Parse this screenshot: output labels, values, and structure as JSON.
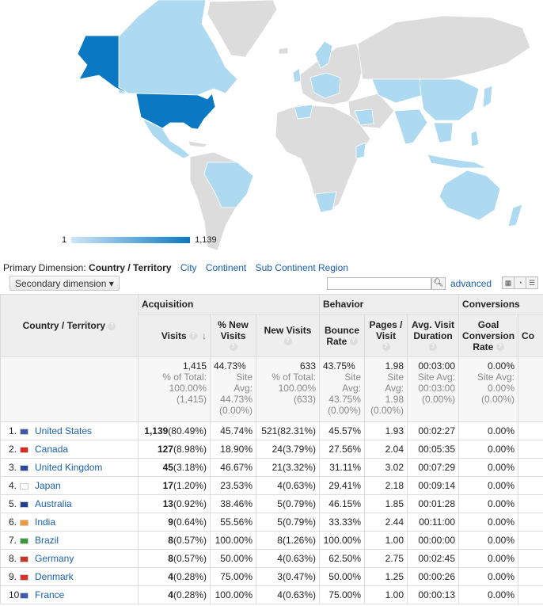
{
  "map": {
    "legend_min": "1",
    "legend_max": "1,139",
    "color_high": "#0a78c2",
    "color_low": "#cfe6f6"
  },
  "dimensions": {
    "label": "Primary Dimension:",
    "current": "Country / Territory",
    "links": [
      "City",
      "Continent",
      "Sub Continent Region"
    ]
  },
  "toolbar": {
    "secondary": "Secondary dimension",
    "search_value": "",
    "advanced": "advanced"
  },
  "groups": {
    "acquisition": "Acquisition",
    "behavior": "Behavior",
    "conversions": "Conversions"
  },
  "columns": {
    "country": "Country / Territory",
    "visits": "Visits",
    "pct_new": "% New Visits",
    "new_visits": "New Visits",
    "bounce": "Bounce Rate",
    "pages": "Pages / Visit",
    "duration": "Avg. Visit Duration",
    "goal": "Goal Conversion Rate",
    "extra": "Co"
  },
  "totals": {
    "visits": "1,415",
    "visits_sub": [
      "% of Total:",
      "100.00%",
      "(1,415)"
    ],
    "pct_new": "44.73%",
    "pct_new_sub": [
      "Site",
      "Avg:",
      "44.73%",
      "(0.00%)"
    ],
    "new_visits": "633",
    "new_visits_sub": [
      "% of Total:",
      "100.00%",
      "(633)"
    ],
    "bounce": "43.75%",
    "bounce_sub": [
      "Site",
      "Avg:",
      "43.75%",
      "(0.00%)"
    ],
    "pages": "1.98",
    "pages_sub": [
      "Site",
      "Avg:",
      "1.98",
      "(0.00%)"
    ],
    "duration": "00:03:00",
    "duration_sub": [
      "Site Avg:",
      "00:03:00",
      "(0.00%)"
    ],
    "goal": "0.00%",
    "goal_sub": [
      "Site Avg:",
      "0.00%",
      "(0.00%)"
    ]
  },
  "rows": [
    {
      "idx": "1.",
      "country": "United States",
      "flag": "#3c5aa8",
      "visits": "1,139",
      "visits_pct": "(80.49%)",
      "pct_new": "45.74%",
      "new": "521",
      "new_pct": "(82.31%)",
      "bounce": "45.57%",
      "pages": "1.93",
      "dur": "00:02:27",
      "goal": "0.00%"
    },
    {
      "idx": "2.",
      "country": "Canada",
      "flag": "#d52b1e",
      "visits": "127",
      "visits_pct": "(8.98%)",
      "pct_new": "18.90%",
      "new": "24",
      "new_pct": "(3.79%)",
      "bounce": "27.56%",
      "pages": "2.04",
      "dur": "00:05:35",
      "goal": "0.00%"
    },
    {
      "idx": "3.",
      "country": "United Kingdom",
      "flag": "#2a4a9c",
      "visits": "45",
      "visits_pct": "(3.18%)",
      "pct_new": "46.67%",
      "new": "21",
      "new_pct": "(3.32%)",
      "bounce": "31.11%",
      "pages": "3.02",
      "dur": "00:07:29",
      "goal": "0.00%"
    },
    {
      "idx": "4.",
      "country": "Japan",
      "flag": "#ffffff",
      "visits": "17",
      "visits_pct": "(1.20%)",
      "pct_new": "23.53%",
      "new": "4",
      "new_pct": "(0.63%)",
      "bounce": "29.41%",
      "pages": "2.18",
      "dur": "00:09:14",
      "goal": "0.00%"
    },
    {
      "idx": "5.",
      "country": "Australia",
      "flag": "#1f3f8f",
      "visits": "13",
      "visits_pct": "(0.92%)",
      "pct_new": "38.46%",
      "new": "5",
      "new_pct": "(0.79%)",
      "bounce": "46.15%",
      "pages": "1.85",
      "dur": "00:01:28",
      "goal": "0.00%"
    },
    {
      "idx": "6.",
      "country": "India",
      "flag": "#f39a33",
      "visits": "9",
      "visits_pct": "(0.64%)",
      "pct_new": "55.56%",
      "new": "5",
      "new_pct": "(0.79%)",
      "bounce": "33.33%",
      "pages": "2.44",
      "dur": "00:11:00",
      "goal": "0.00%"
    },
    {
      "idx": "7.",
      "country": "Brazil",
      "flag": "#3a9a3a",
      "visits": "8",
      "visits_pct": "(0.57%)",
      "pct_new": "100.00%",
      "new": "8",
      "new_pct": "(1.26%)",
      "bounce": "100.00%",
      "pages": "1.00",
      "dur": "00:00:00",
      "goal": "0.00%"
    },
    {
      "idx": "8.",
      "country": "Germany",
      "flag": "#cc3322",
      "visits": "8",
      "visits_pct": "(0.57%)",
      "pct_new": "50.00%",
      "new": "4",
      "new_pct": "(0.63%)",
      "bounce": "62.50%",
      "pages": "2.75",
      "dur": "00:02:45",
      "goal": "0.00%"
    },
    {
      "idx": "9.",
      "country": "Denmark",
      "flag": "#d8332a",
      "visits": "4",
      "visits_pct": "(0.28%)",
      "pct_new": "75.00%",
      "new": "3",
      "new_pct": "(0.47%)",
      "bounce": "50.00%",
      "pages": "1.25",
      "dur": "00:00:26",
      "goal": "0.00%"
    },
    {
      "idx": "10.",
      "country": "France",
      "flag": "#3b5bb0",
      "visits": "4",
      "visits_pct": "(0.28%)",
      "pct_new": "100.00%",
      "new": "4",
      "new_pct": "(0.63%)",
      "bounce": "75.00%",
      "pages": "1.00",
      "dur": "00:00:13",
      "goal": "0.00%"
    }
  ]
}
